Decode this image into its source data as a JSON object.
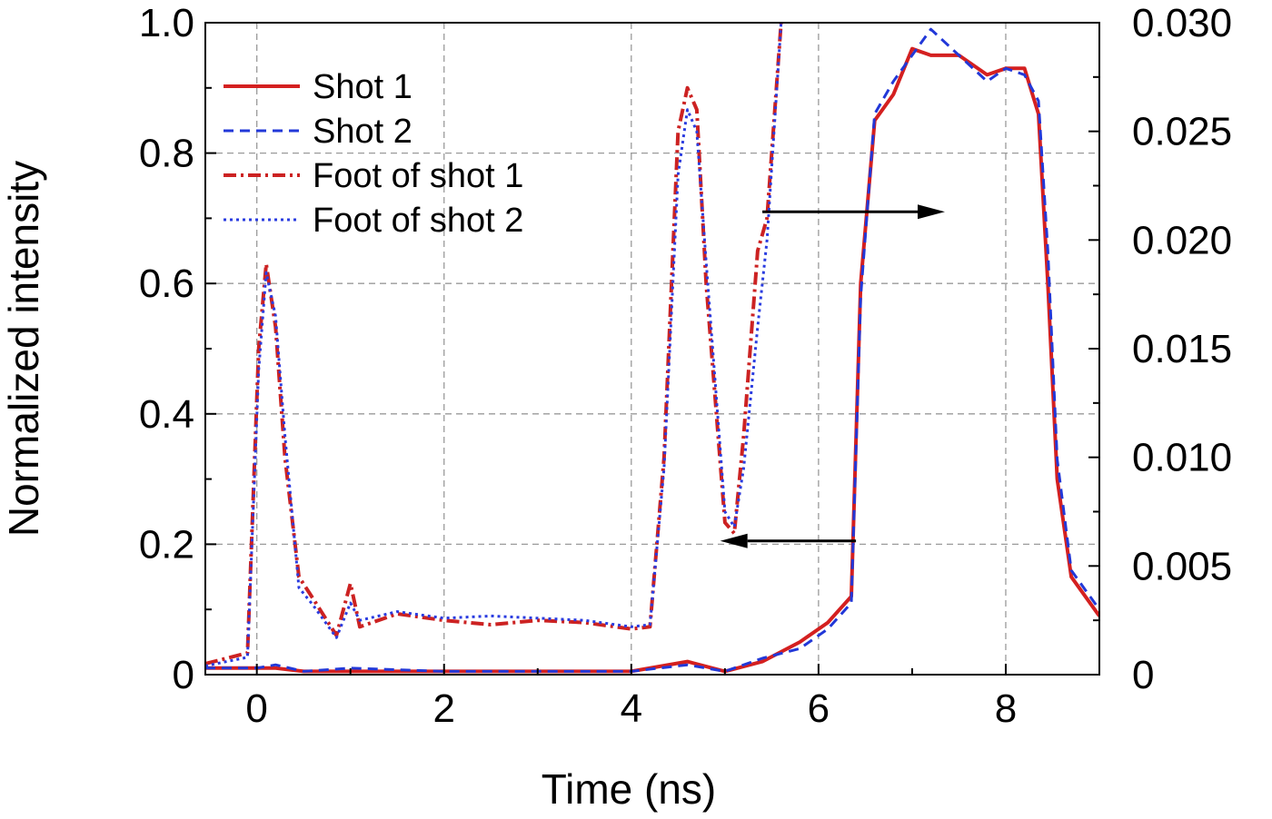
{
  "chart_data": {
    "type": "line",
    "xlabel": "Time (ns)",
    "ylabel": "Normalized intensity",
    "xlim": [
      -0.55,
      9.0
    ],
    "ylim_left": [
      0,
      1.0
    ],
    "ylim_right": [
      0,
      0.03
    ],
    "x_ticks": [
      0,
      2,
      4,
      6,
      8
    ],
    "x_tick_labels": [
      "0",
      "2",
      "4",
      "6",
      "8"
    ],
    "y_left_ticks": [
      0,
      0.2,
      0.4,
      0.6,
      0.8,
      1.0
    ],
    "y_left_tick_labels": [
      "0",
      "0.2",
      "0.4",
      "0.6",
      "0.8",
      "1.0"
    ],
    "y_right_ticks": [
      0,
      0.005,
      0.01,
      0.015,
      0.02,
      0.025,
      0.03
    ],
    "y_right_tick_labels": [
      "0",
      "0.005",
      "0.010",
      "0.015",
      "0.020",
      "0.025",
      "0.030"
    ],
    "grid": true,
    "legend_position": "top-left",
    "series": [
      {
        "name": "Shot 1",
        "axis": "left",
        "color": "#d42020",
        "dash": "solid",
        "x": [
          -0.55,
          0,
          0.2,
          0.5,
          1.0,
          2.0,
          3.0,
          4.0,
          4.6,
          5.0,
          5.4,
          5.8,
          6.1,
          6.35,
          6.45,
          6.6,
          6.8,
          7.0,
          7.2,
          7.5,
          7.8,
          8.0,
          8.2,
          8.35,
          8.45,
          8.55,
          8.7,
          8.85,
          9.0
        ],
        "y": [
          0.01,
          0.01,
          0.01,
          0.005,
          0.005,
          0.005,
          0.005,
          0.005,
          0.02,
          0.005,
          0.02,
          0.05,
          0.08,
          0.12,
          0.6,
          0.85,
          0.89,
          0.96,
          0.95,
          0.95,
          0.92,
          0.93,
          0.93,
          0.86,
          0.6,
          0.3,
          0.15,
          0.12,
          0.09
        ]
      },
      {
        "name": "Shot 2",
        "axis": "left",
        "color": "#2238d8",
        "dash": "dashed",
        "x": [
          -0.55,
          0,
          0.2,
          0.5,
          1.0,
          2.0,
          3.0,
          4.0,
          4.6,
          5.0,
          5.4,
          5.8,
          6.1,
          6.35,
          6.45,
          6.6,
          6.8,
          7.0,
          7.2,
          7.5,
          7.8,
          8.0,
          8.2,
          8.35,
          8.45,
          8.55,
          8.7,
          8.85,
          9.0
        ],
        "y": [
          0.01,
          0.01,
          0.015,
          0.005,
          0.01,
          0.005,
          0.005,
          0.005,
          0.015,
          0.005,
          0.025,
          0.04,
          0.07,
          0.11,
          0.58,
          0.86,
          0.91,
          0.95,
          0.99,
          0.95,
          0.91,
          0.93,
          0.92,
          0.88,
          0.65,
          0.33,
          0.16,
          0.13,
          0.1
        ]
      },
      {
        "name": "Foot of shot 1",
        "axis": "right",
        "color": "#cc2222",
        "dash": "dashdot",
        "x": [
          -0.55,
          -0.1,
          0.02,
          0.1,
          0.2,
          0.3,
          0.45,
          0.6,
          0.85,
          1.0,
          1.1,
          1.5,
          2.0,
          2.5,
          3.0,
          3.5,
          4.0,
          4.2,
          4.35,
          4.5,
          4.6,
          4.7,
          4.8,
          5.0,
          5.1,
          5.2,
          5.35,
          5.45,
          5.6
        ],
        "y": [
          0.0005,
          0.001,
          0.015,
          0.0189,
          0.016,
          0.01,
          0.0045,
          0.0035,
          0.0018,
          0.0042,
          0.0022,
          0.0028,
          0.0025,
          0.0023,
          0.0025,
          0.0024,
          0.0021,
          0.0022,
          0.01,
          0.025,
          0.027,
          0.026,
          0.018,
          0.007,
          0.0065,
          0.011,
          0.0195,
          0.021,
          0.03
        ]
      },
      {
        "name": "Foot of shot 2",
        "axis": "right",
        "color": "#2a3ce0",
        "dash": "dotted",
        "x": [
          -0.55,
          -0.1,
          0.02,
          0.1,
          0.2,
          0.3,
          0.45,
          0.6,
          0.85,
          1.0,
          1.1,
          1.5,
          2.0,
          2.5,
          3.0,
          3.5,
          4.0,
          4.2,
          4.35,
          4.5,
          4.6,
          4.7,
          4.8,
          5.0,
          5.1,
          5.2,
          5.35,
          5.45,
          5.6
        ],
        "y": [
          0.0004,
          0.0008,
          0.014,
          0.0185,
          0.0165,
          0.011,
          0.004,
          0.0032,
          0.0017,
          0.0033,
          0.0025,
          0.0029,
          0.0026,
          0.0027,
          0.0026,
          0.0025,
          0.0022,
          0.0023,
          0.0095,
          0.023,
          0.026,
          0.025,
          0.019,
          0.0075,
          0.0068,
          0.0095,
          0.016,
          0.02,
          0.03
        ]
      }
    ],
    "annotations": [
      {
        "kind": "arrow",
        "direction": "right",
        "meaning": "points to right axis",
        "from_x": 5.4,
        "to_x": 7.35,
        "y": 0.71
      },
      {
        "kind": "arrow",
        "direction": "left",
        "meaning": "points to left axis",
        "from_x": 6.4,
        "to_x": 4.95,
        "y": 0.205
      }
    ]
  }
}
